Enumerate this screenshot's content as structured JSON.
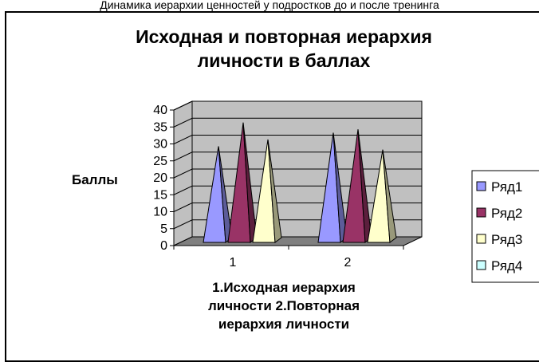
{
  "page": {
    "top_caption": "Динамика иерархии ценностей у подростков до и после тренинга"
  },
  "chart_data": {
    "type": "bar",
    "style": "3d-cone",
    "title_lines": [
      "Исходная и повторная иерархия",
      "личности в баллах"
    ],
    "ylabel": "Баллы",
    "xlabel_lines": [
      "1.Исходная иерархия",
      "личности 2.Повторная",
      "иерархия личности"
    ],
    "categories": [
      "1",
      "2"
    ],
    "series": [
      {
        "name": "Ряд1",
        "values": [
          28,
          32
        ],
        "color": "#9999ff"
      },
      {
        "name": "Ряд2",
        "values": [
          35,
          33
        ],
        "color": "#993366"
      },
      {
        "name": "Ряд3",
        "values": [
          30,
          27
        ],
        "color": "#ffffcc"
      },
      {
        "name": "Ряд4",
        "values": [
          null,
          null
        ],
        "color": "#ccffff"
      }
    ],
    "ylim": [
      0,
      40
    ],
    "yticks": [
      0,
      5,
      10,
      15,
      20,
      25,
      30,
      35,
      40
    ],
    "grid": true,
    "wall_color": "#c0c0c0",
    "floor_color": "#808080",
    "legend_position": "right"
  }
}
